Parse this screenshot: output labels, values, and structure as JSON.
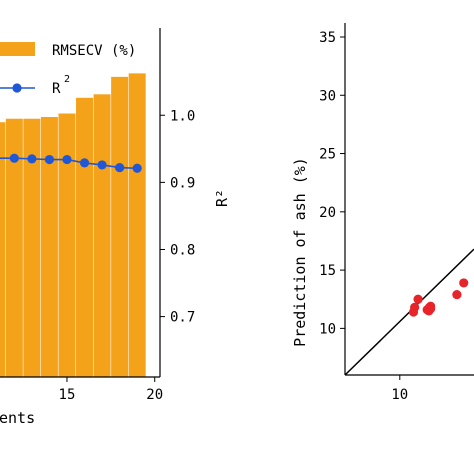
{
  "chart_data": [
    {
      "type": "bar",
      "title": "",
      "xlabel": "ents",
      "ylabel_right": "R²",
      "x_ticks": [
        15,
        20
      ],
      "y_right_ticks": [
        "1.0",
        "0.9",
        "0.8",
        "0.7"
      ],
      "y_right_lim": [
        0.61,
        1.13
      ],
      "bar_lim": [
        0,
        1
      ],
      "x_lim": [
        10.5,
        20.3
      ],
      "legend": {
        "position": "top-left",
        "entries": [
          {
            "label": "RMSECV (%)",
            "kind": "bar",
            "color": "#f5a21b"
          },
          {
            "label": "R",
            "sup": "2",
            "kind": "line",
            "color": "#1f57d6"
          }
        ]
      },
      "series": [
        {
          "name": "RMSECV (%)",
          "kind": "bar",
          "color": "#f5a21b",
          "x": [
            11,
            12,
            13,
            14,
            15,
            16,
            17,
            18,
            19
          ],
          "values": [
            0.73,
            0.74,
            0.74,
            0.745,
            0.755,
            0.8,
            0.81,
            0.86,
            0.87
          ]
        },
        {
          "name": "R²",
          "kind": "line",
          "color": "#1f57d6",
          "x": [
            10.8,
            12,
            13,
            14,
            15,
            16,
            17,
            18,
            19
          ],
          "values": [
            0.936,
            0.936,
            0.935,
            0.934,
            0.934,
            0.929,
            0.926,
            0.922,
            0.921
          ]
        }
      ]
    },
    {
      "type": "scatter",
      "title": "",
      "ylabel": "Prediction of ash (%)",
      "xlabel": "",
      "x_ticks": [
        10
      ],
      "y_ticks": [
        10,
        15,
        20,
        25,
        30,
        35
      ],
      "x_lim": [
        5.2,
        16.5
      ],
      "y_lim": [
        6.0,
        36.2
      ],
      "fit_line": {
        "x": [
          5.2,
          16.5
        ],
        "y": [
          6.0,
          16.8
        ],
        "color": "#000000"
      },
      "points": {
        "color": "#e8242b",
        "x": [
          11.2,
          11.3,
          11.6,
          12.4,
          12.55,
          12.6,
          12.7,
          12.7,
          15.0,
          15.6
        ],
        "y": [
          11.4,
          11.8,
          12.5,
          11.6,
          11.5,
          11.8,
          11.7,
          11.9,
          12.9,
          13.9
        ]
      }
    }
  ]
}
